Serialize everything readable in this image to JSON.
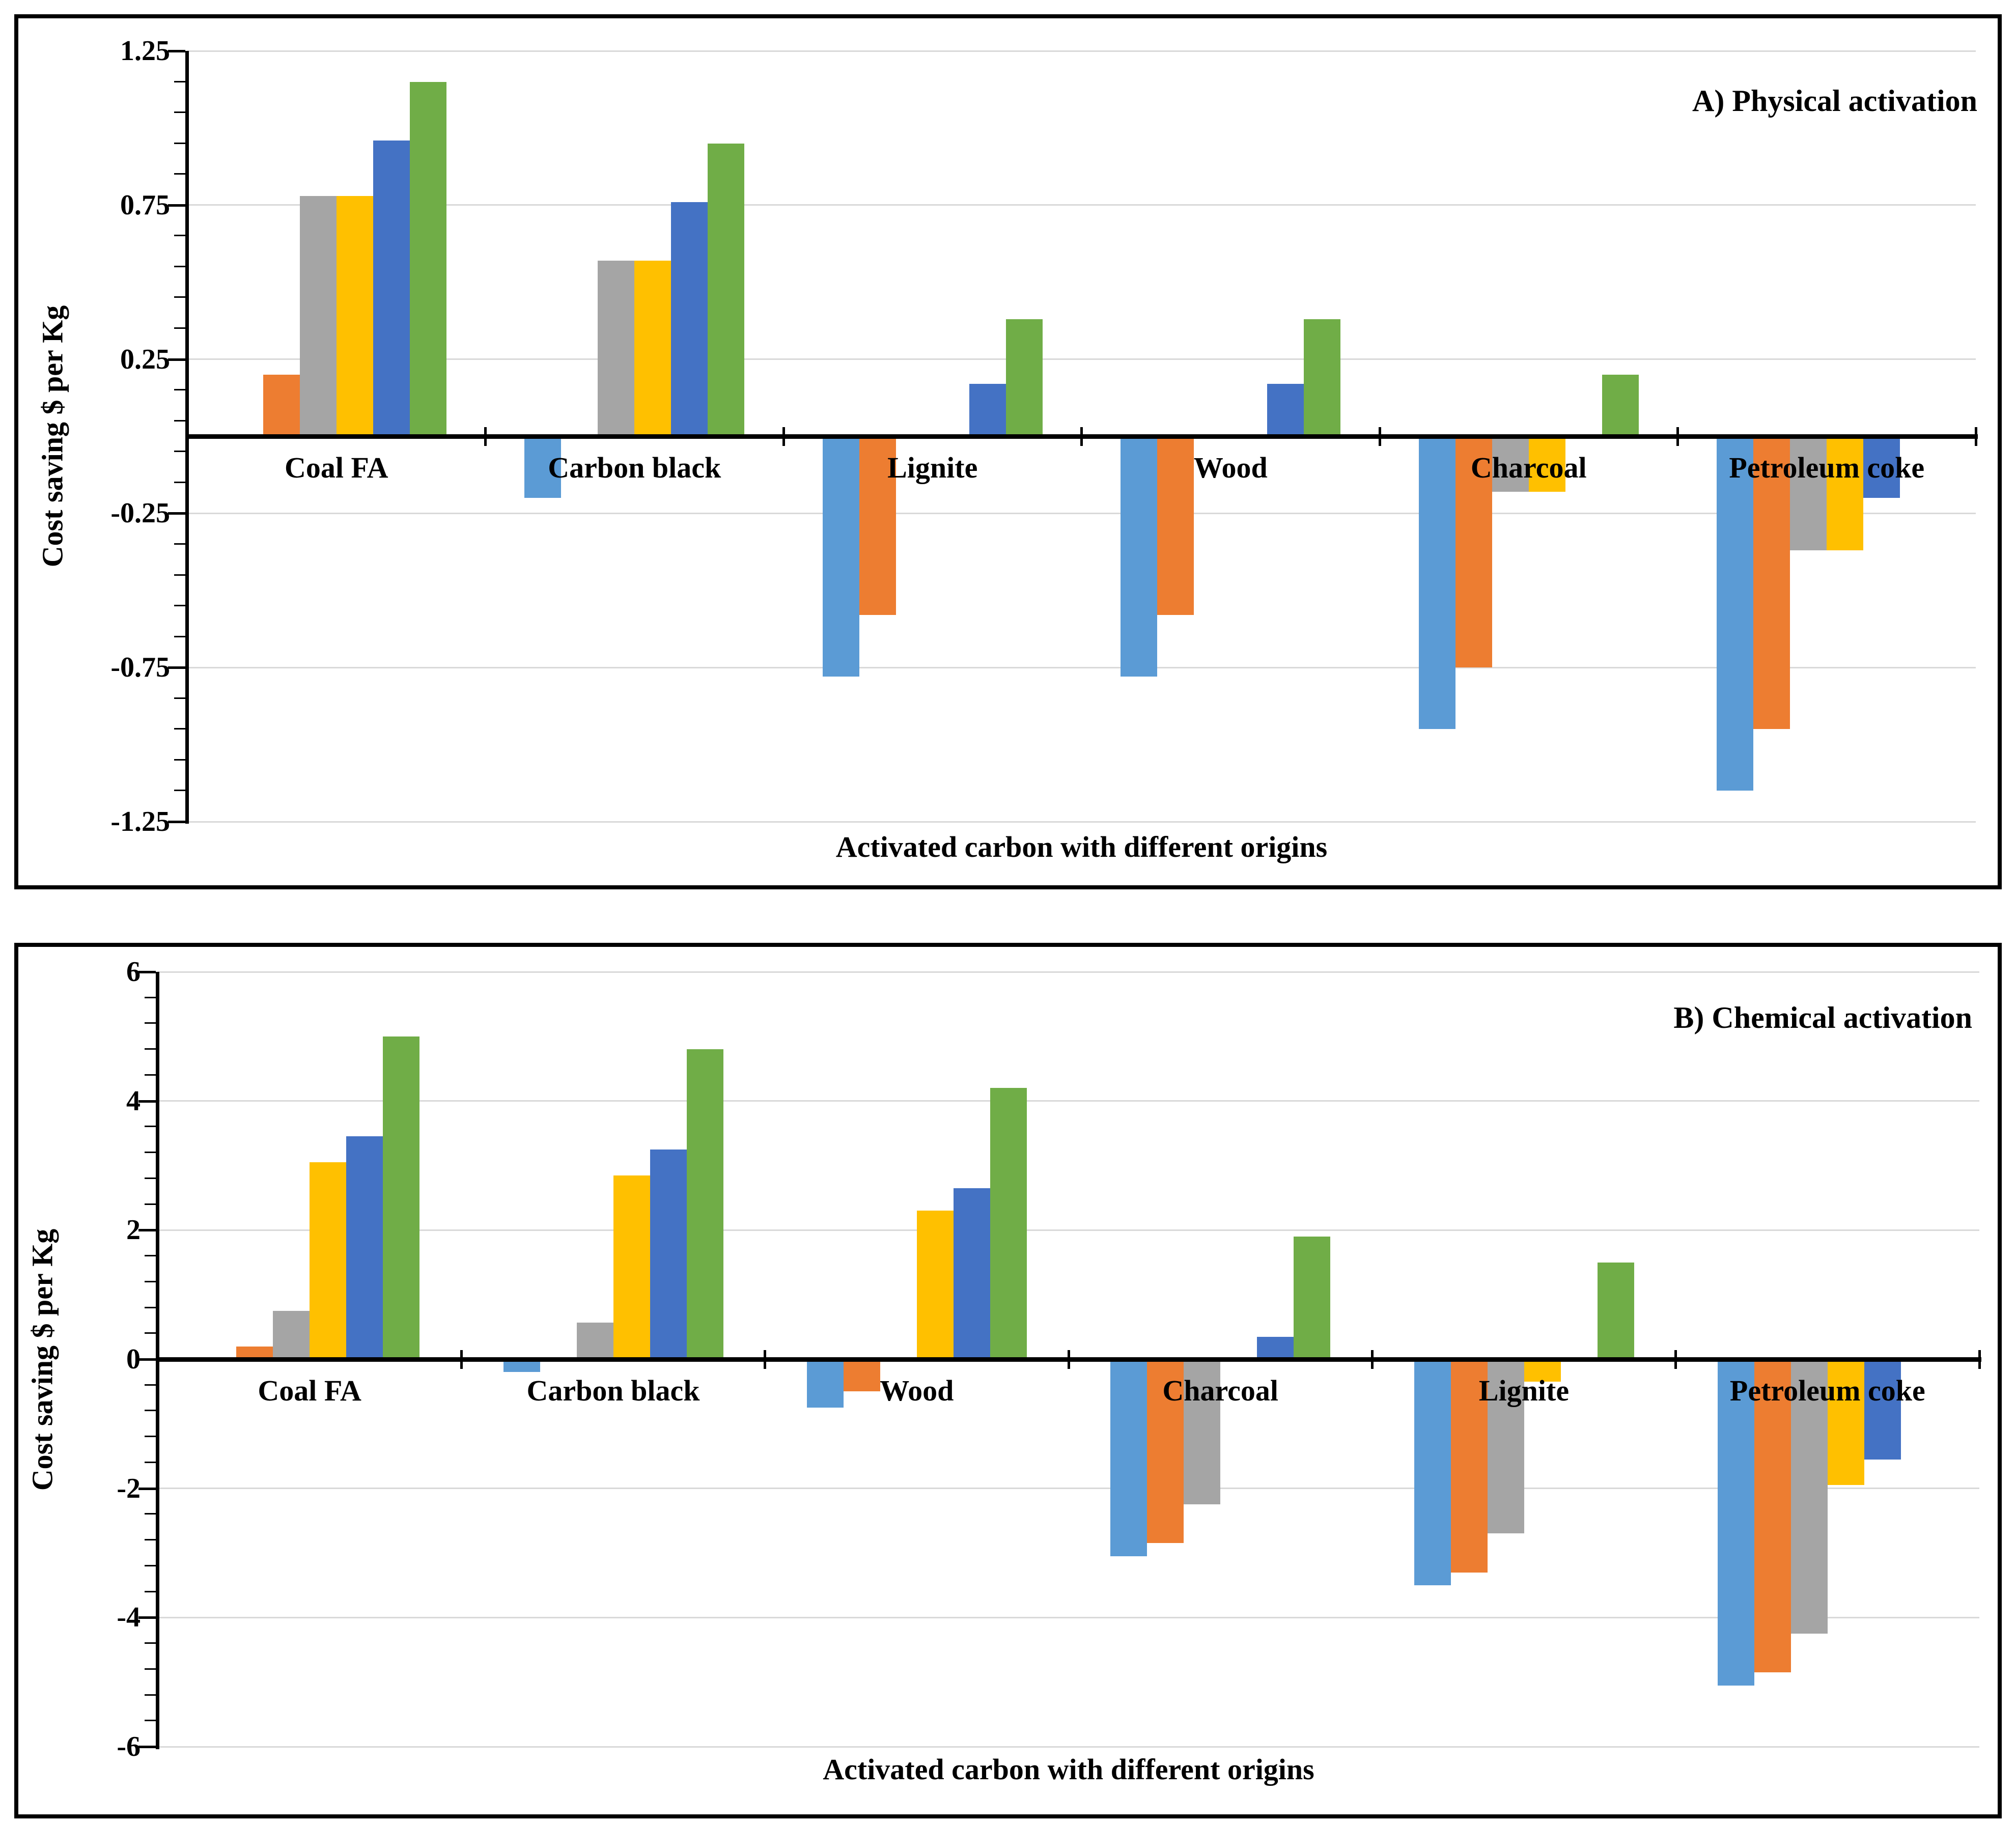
{
  "figure": {
    "panel_a_title": "A) Physical activation",
    "panel_b_title": "B) Chemical activation",
    "y_axis_title": "Cost saving $ per Kg",
    "x_axis_title": "Activated carbon with different origins"
  },
  "chart_data": [
    {
      "type": "bar",
      "title": "A) Physical activation",
      "xlabel": "Activated carbon with different origins",
      "ylabel": "Cost saving $ per Kg",
      "ylim": [
        -1.25,
        1.25
      ],
      "grid": "horizontal major every 0.5",
      "legend_position": "none",
      "y_tick_labels": [
        "1.25",
        "0.75",
        "0.25",
        "-0.25",
        "-0.75",
        "-1.25"
      ],
      "y_tick_values": [
        1.25,
        0.75,
        0.25,
        -0.25,
        -0.75,
        -1.25
      ],
      "minor_tick_step": 0.1,
      "major_tick_step": 0.25,
      "categories": [
        "Coal FA",
        "Carbon black",
        "Lignite",
        "Wood",
        "Charcoal",
        "Petroleum coke"
      ],
      "series": [
        {
          "name": "series-1-light-blue",
          "color": "#5B9BD5",
          "values": [
            0,
            -0.2,
            -0.78,
            -0.78,
            -0.95,
            -1.15
          ]
        },
        {
          "name": "series-2-orange",
          "color": "#ED7D31",
          "values": [
            0.2,
            0,
            -0.58,
            -0.58,
            -0.75,
            -0.95
          ]
        },
        {
          "name": "series-3-gray",
          "color": "#A5A5A5",
          "values": [
            0.78,
            0.57,
            0,
            0,
            -0.18,
            -0.37
          ]
        },
        {
          "name": "series-4-yellow",
          "color": "#FFC000",
          "values": [
            0.78,
            0.57,
            0,
            0,
            -0.18,
            -0.37
          ]
        },
        {
          "name": "series-5-blue",
          "color": "#4472C4",
          "values": [
            0.96,
            0.76,
            0.17,
            0.17,
            0,
            -0.2
          ]
        },
        {
          "name": "series-6-green",
          "color": "#70AD47",
          "values": [
            1.15,
            0.95,
            0.38,
            0.38,
            0.2,
            0
          ]
        }
      ]
    },
    {
      "type": "bar",
      "title": "B) Chemical activation",
      "xlabel": "Activated carbon with different origins",
      "ylabel": "Cost saving $ per Kg",
      "ylim": [
        -6,
        6
      ],
      "grid": "horizontal major every 2",
      "legend_position": "none",
      "y_tick_labels": [
        "6",
        "4",
        "2",
        "0",
        "-2",
        "-4",
        "-6"
      ],
      "y_tick_values": [
        6,
        4,
        2,
        0,
        -2,
        -4,
        -6
      ],
      "minor_tick_step": 0.4,
      "major_tick_step": 2,
      "categories": [
        "Coal FA",
        "Carbon black",
        "Wood",
        "Charcoal",
        "Lignite",
        "Petroleum coke"
      ],
      "series": [
        {
          "name": "series-1-light-blue",
          "color": "#5B9BD5",
          "values": [
            0,
            -0.2,
            -0.75,
            -3.05,
            -3.5,
            -5.05
          ]
        },
        {
          "name": "series-2-orange",
          "color": "#ED7D31",
          "values": [
            0.2,
            0,
            -0.5,
            -2.85,
            -3.3,
            -4.85
          ]
        },
        {
          "name": "series-3-gray",
          "color": "#A5A5A5",
          "values": [
            0.75,
            0.57,
            0,
            -2.25,
            -2.7,
            -4.25
          ]
        },
        {
          "name": "series-4-yellow",
          "color": "#FFC000",
          "values": [
            3.05,
            2.85,
            2.3,
            0,
            -0.35,
            -1.95
          ]
        },
        {
          "name": "series-5-blue",
          "color": "#4472C4",
          "values": [
            3.45,
            3.25,
            2.65,
            0.35,
            0,
            -1.55
          ]
        },
        {
          "name": "series-6-green",
          "color": "#70AD47",
          "values": [
            5.0,
            4.8,
            4.2,
            1.9,
            1.5,
            0
          ]
        }
      ]
    }
  ]
}
